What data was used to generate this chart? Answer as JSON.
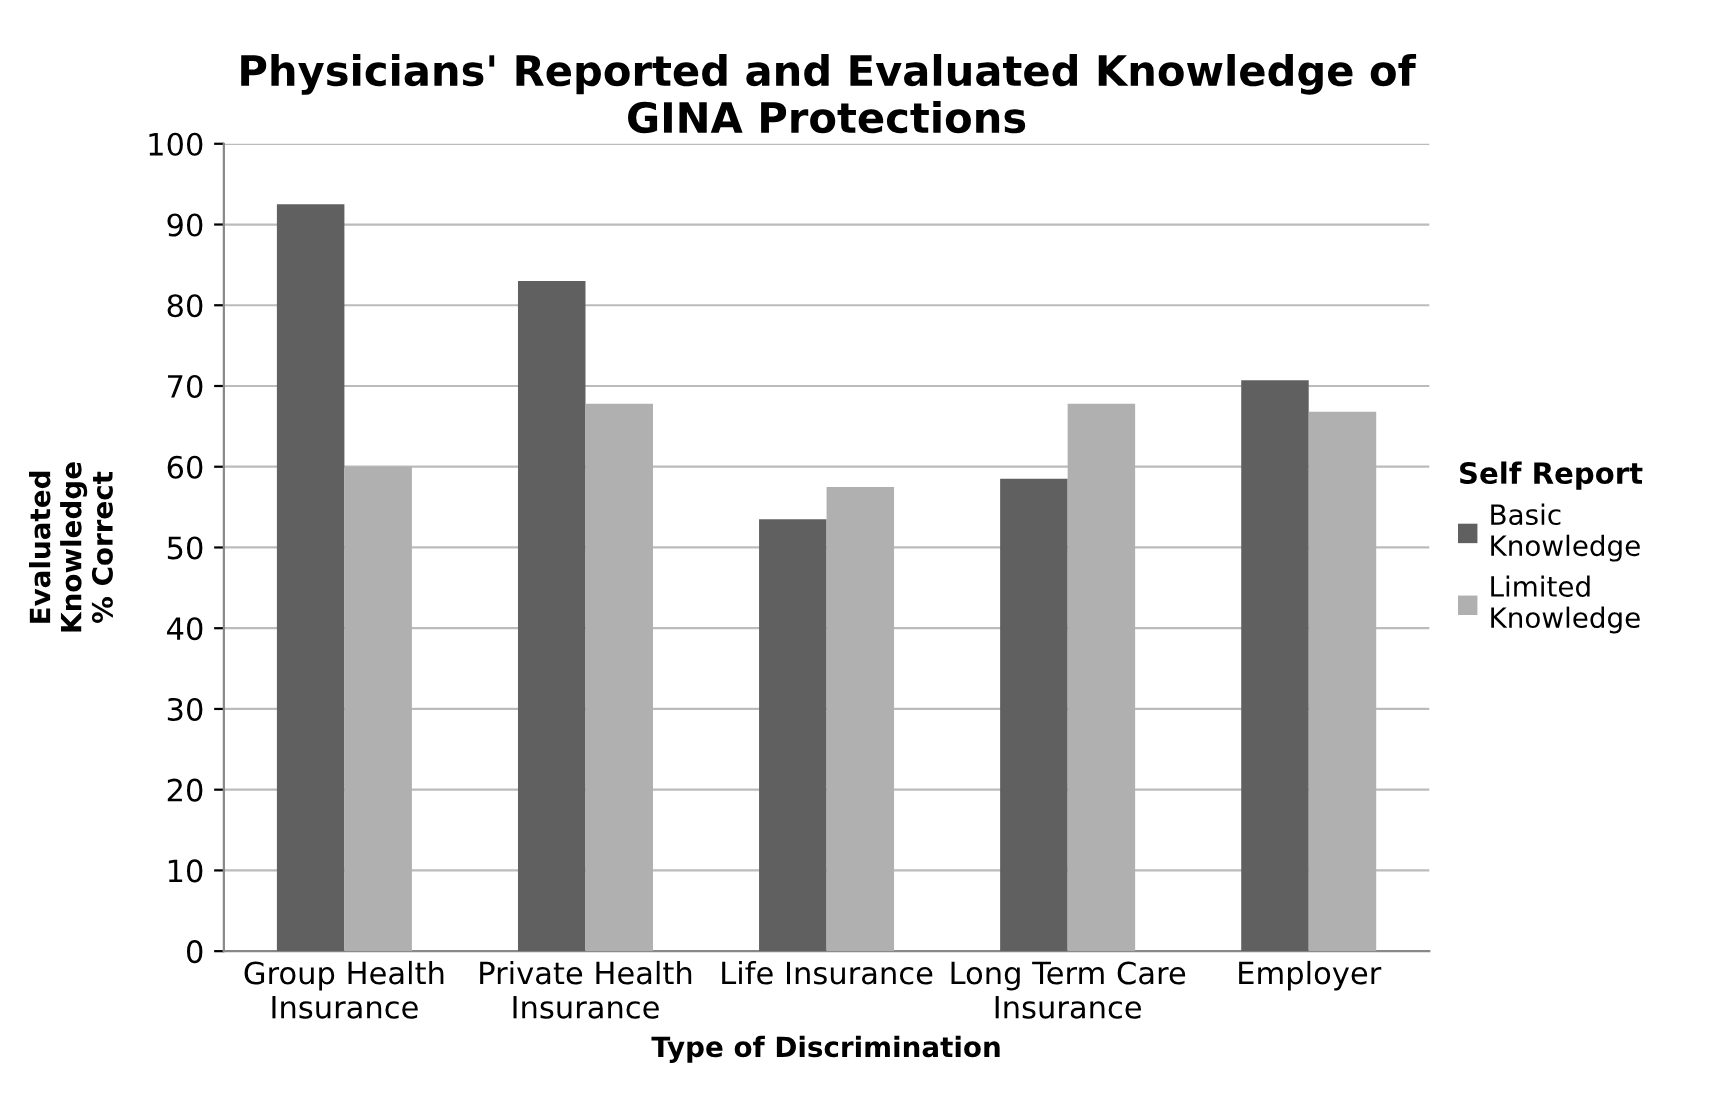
{
  "chart_data": {
    "type": "bar",
    "title": "Physicians' Reported and Evaluated Knowledge of\nGINA Protections",
    "xlabel": "Type of Discrimination",
    "ylabel": "Evaluated\nKnowledge\n% Correct",
    "legend_title": "Self Report",
    "categories": [
      "Group Health\nInsurance",
      "Private Health\nInsurance",
      "Life Insurance",
      "Long Term Care\nInsurance",
      "Employer"
    ],
    "series": [
      {
        "name": "Basic\nKnowledge",
        "color": "#606060",
        "values": [
          92.5,
          83,
          53.5,
          58.5,
          70.7
        ]
      },
      {
        "name": "Limited\nKnowledge",
        "color": "#b0b0b0",
        "values": [
          60,
          67.8,
          57.5,
          67.8,
          66.8
        ]
      }
    ],
    "ylim": [
      0,
      100
    ],
    "yticks": [
      0,
      10,
      20,
      30,
      40,
      50,
      60,
      70,
      80,
      90,
      100
    ],
    "grid": "y",
    "legend": "right"
  }
}
